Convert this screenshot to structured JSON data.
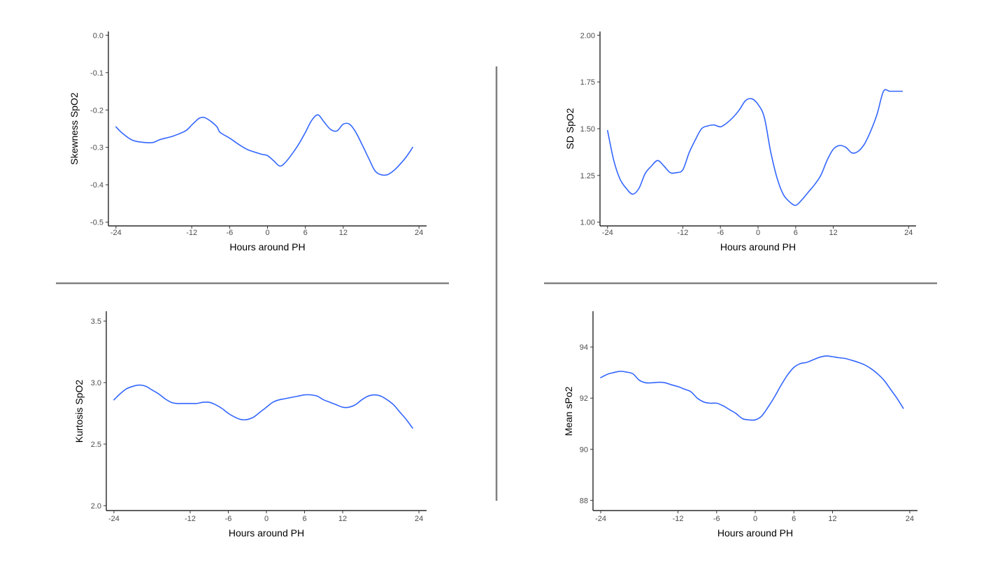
{
  "colors": {
    "line": "#3366ff",
    "axis": "#000000",
    "divider": "#808080",
    "tick_text": "#4d4d4d"
  },
  "chart_data": [
    {
      "id": "skewness",
      "type": "line",
      "xlabel": "Hours around PH",
      "ylabel": "Skewness SpO2",
      "xticks": [
        -24,
        -12,
        -6,
        0,
        6,
        12,
        24
      ],
      "xtick_labels": [
        "-24",
        "-12",
        "-6",
        "0",
        "6",
        "12",
        "24"
      ],
      "yticks": [
        0.0,
        -0.1,
        -0.2,
        -0.3,
        -0.4,
        -0.5
      ],
      "ytick_labels": [
        "0.0",
        "-0.1",
        "-0.2",
        "-0.3",
        "-0.4",
        "-0.5"
      ],
      "xlim": [
        -25.2,
        25.2
      ],
      "ylim": [
        -0.51,
        0.01
      ],
      "grid": false,
      "series": [
        {
          "x": [
            -24,
            -23,
            -21.5,
            -20,
            -18.2,
            -17,
            -15,
            -13,
            -12,
            -11.5,
            -10.8,
            -10,
            -9,
            -8,
            -7.5,
            -6,
            -5,
            -4,
            -3,
            -1,
            0,
            1,
            2,
            3,
            4,
            5,
            6,
            7,
            8,
            9,
            10,
            11,
            12,
            13,
            14,
            15,
            16,
            17,
            18,
            19,
            20,
            21,
            22,
            23
          ],
          "y": [
            -0.245,
            -0.262,
            -0.28,
            -0.286,
            -0.287,
            -0.279,
            -0.27,
            -0.256,
            -0.24,
            -0.232,
            -0.222,
            -0.22,
            -0.23,
            -0.245,
            -0.26,
            -0.275,
            -0.287,
            -0.298,
            -0.307,
            -0.318,
            -0.322,
            -0.336,
            -0.35,
            -0.337,
            -0.315,
            -0.29,
            -0.26,
            -0.228,
            -0.213,
            -0.233,
            -0.252,
            -0.256,
            -0.238,
            -0.238,
            -0.26,
            -0.293,
            -0.328,
            -0.362,
            -0.373,
            -0.373,
            -0.362,
            -0.345,
            -0.325,
            -0.3
          ]
        }
      ]
    },
    {
      "id": "sd",
      "type": "line",
      "xlabel": "Hours around PH",
      "ylabel": "SD SpO2",
      "xticks": [
        -24,
        -12,
        -6,
        0,
        6,
        12,
        24
      ],
      "xtick_labels": [
        "-24",
        "-12",
        "-6",
        "0",
        "6",
        "12",
        "24"
      ],
      "yticks": [
        2.0,
        1.75,
        1.5,
        1.25,
        1.0
      ],
      "ytick_labels": [
        "2.00",
        "1.75",
        "1.50",
        "1.25",
        "1.00"
      ],
      "xlim": [
        -25.2,
        25.2
      ],
      "ylim": [
        0.98,
        2.02
      ],
      "grid": false,
      "series": [
        {
          "x": [
            -24,
            -23,
            -22,
            -21,
            -20,
            -19,
            -18,
            -17,
            -16,
            -15,
            -14,
            -13,
            -12,
            -11,
            -10,
            -9,
            -8,
            -7,
            -6,
            -5,
            -4,
            -3,
            -2,
            -1,
            0,
            1,
            2,
            3,
            4,
            5,
            6,
            7,
            8,
            9,
            10,
            11,
            12,
            13,
            14,
            15,
            16,
            17,
            18,
            19,
            20,
            21,
            22,
            23
          ],
          "y": [
            1.49,
            1.33,
            1.23,
            1.18,
            1.15,
            1.18,
            1.26,
            1.3,
            1.33,
            1.3,
            1.265,
            1.265,
            1.28,
            1.37,
            1.44,
            1.5,
            1.515,
            1.52,
            1.51,
            1.53,
            1.56,
            1.6,
            1.65,
            1.66,
            1.63,
            1.56,
            1.38,
            1.24,
            1.15,
            1.11,
            1.09,
            1.12,
            1.16,
            1.2,
            1.25,
            1.33,
            1.39,
            1.41,
            1.4,
            1.37,
            1.38,
            1.42,
            1.49,
            1.58,
            1.7,
            1.7,
            1.7,
            1.7
          ]
        }
      ]
    },
    {
      "id": "kurtosis",
      "type": "line",
      "xlabel": "Hours around PH",
      "ylabel": "Kurtosis SpO2",
      "xticks": [
        -24,
        -12,
        -6,
        0,
        6,
        12,
        24
      ],
      "xtick_labels": [
        "-24",
        "-12",
        "-6",
        "0",
        "6",
        "12",
        "24"
      ],
      "yticks": [
        3.5,
        3.0,
        2.5,
        2.0
      ],
      "ytick_labels": [
        "3.5",
        "3.0",
        "2.5",
        "2.0"
      ],
      "xlim": [
        -25.2,
        25.2
      ],
      "ylim": [
        1.96,
        3.58
      ],
      "grid": false,
      "series": [
        {
          "x": [
            -24,
            -23,
            -22,
            -21,
            -20,
            -19,
            -18,
            -17,
            -16,
            -15,
            -14,
            -13,
            -12,
            -11,
            -10,
            -9,
            -8,
            -7,
            -6,
            -5,
            -4,
            -3,
            -2,
            -1,
            0,
            1,
            2,
            3,
            4,
            5,
            6,
            7,
            8,
            9,
            10,
            11,
            12,
            13,
            14,
            15,
            16,
            17,
            18,
            19,
            20,
            21,
            22,
            23
          ],
          "y": [
            2.86,
            2.91,
            2.95,
            2.97,
            2.98,
            2.97,
            2.94,
            2.91,
            2.87,
            2.84,
            2.83,
            2.83,
            2.83,
            2.83,
            2.84,
            2.84,
            2.82,
            2.79,
            2.75,
            2.72,
            2.7,
            2.7,
            2.72,
            2.76,
            2.8,
            2.84,
            2.86,
            2.87,
            2.88,
            2.89,
            2.9,
            2.9,
            2.89,
            2.86,
            2.84,
            2.82,
            2.8,
            2.8,
            2.82,
            2.86,
            2.89,
            2.9,
            2.89,
            2.86,
            2.82,
            2.76,
            2.7,
            2.63
          ]
        }
      ]
    },
    {
      "id": "mean",
      "type": "line",
      "xlabel": "Hours around PH",
      "ylabel": "Mean sPo2",
      "xticks": [
        -24,
        -12,
        -6,
        0,
        6,
        12,
        24
      ],
      "xtick_labels": [
        "-24",
        "-12",
        "-6",
        "0",
        "6",
        "12",
        "24"
      ],
      "yticks": [
        94,
        92,
        90,
        88
      ],
      "ytick_labels": [
        "94",
        "92",
        "90",
        "88"
      ],
      "xlim": [
        -25.2,
        25.2
      ],
      "ylim": [
        87.6,
        95.4
      ],
      "grid": false,
      "series": [
        {
          "x": [
            -24,
            -23,
            -22,
            -21,
            -20,
            -19,
            -18,
            -17,
            -16,
            -15,
            -14,
            -13,
            -12,
            -11,
            -10,
            -9,
            -8,
            -7,
            -6,
            -5,
            -4,
            -3,
            -2,
            -1,
            0,
            1,
            2,
            3,
            4,
            5,
            6,
            7,
            8,
            9,
            10,
            11,
            12,
            13,
            14,
            15,
            16,
            17,
            18,
            19,
            20,
            21,
            22,
            23
          ],
          "y": [
            92.8,
            92.93,
            93.0,
            93.05,
            93.02,
            92.95,
            92.7,
            92.6,
            92.6,
            92.62,
            92.6,
            92.52,
            92.45,
            92.35,
            92.25,
            92.0,
            91.85,
            91.8,
            91.8,
            91.7,
            91.55,
            91.4,
            91.2,
            91.15,
            91.15,
            91.3,
            91.65,
            92.05,
            92.5,
            92.9,
            93.2,
            93.35,
            93.4,
            93.5,
            93.6,
            93.65,
            93.62,
            93.58,
            93.55,
            93.48,
            93.4,
            93.3,
            93.15,
            92.95,
            92.7,
            92.35,
            92.0,
            91.6
          ]
        }
      ]
    }
  ]
}
